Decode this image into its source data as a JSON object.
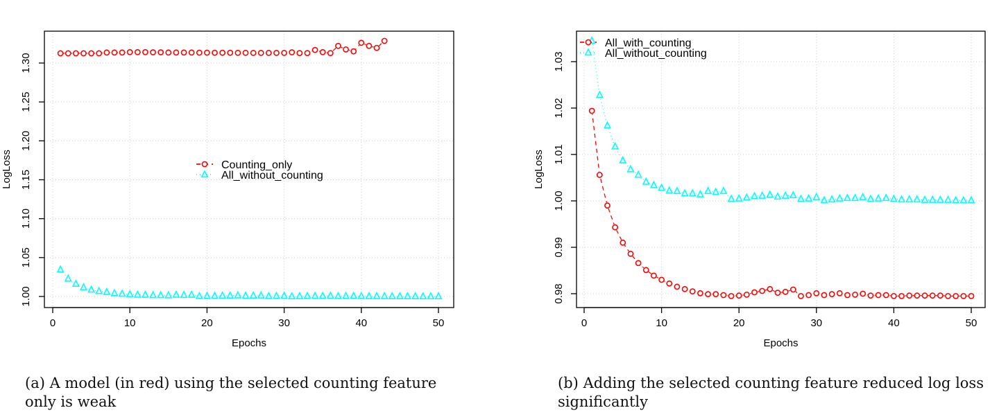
{
  "chart_data": [
    {
      "type": "scatter",
      "panel": "a",
      "title": "",
      "xlabel": "Epochs",
      "ylabel": "LogLoss",
      "xlim": [
        0,
        50
      ],
      "ylim": [
        0.99,
        1.335
      ],
      "xticks": [
        0,
        10,
        20,
        30,
        40,
        50
      ],
      "xtick_labels": [
        "0",
        "10",
        "20",
        "30",
        "40",
        "50"
      ],
      "yticks": [
        1.0,
        1.05,
        1.1,
        1.15,
        1.2,
        1.25,
        1.3
      ],
      "ytick_labels": [
        "1.00",
        "1.05",
        "1.10",
        "1.15",
        "1.20",
        "1.25",
        "1.30"
      ],
      "grid": true,
      "legend_position": "center",
      "series": [
        {
          "name": "Counting_only",
          "color": "#ff0000",
          "marker": "circle",
          "line": "dashed",
          "x": [
            1,
            2,
            3,
            4,
            5,
            6,
            7,
            8,
            9,
            10,
            11,
            12,
            13,
            14,
            15,
            16,
            17,
            18,
            19,
            20,
            21,
            22,
            23,
            24,
            25,
            26,
            27,
            28,
            29,
            30,
            31,
            32,
            33,
            34,
            35,
            36,
            37,
            38,
            39,
            40,
            41,
            42,
            43
          ],
          "values": [
            1.3125,
            1.3125,
            1.3125,
            1.3125,
            1.3125,
            1.3125,
            1.3135,
            1.3135,
            1.3135,
            1.314,
            1.314,
            1.314,
            1.3138,
            1.3138,
            1.3135,
            1.3135,
            1.3135,
            1.3135,
            1.3133,
            1.3133,
            1.3132,
            1.3132,
            1.3132,
            1.3131,
            1.3131,
            1.313,
            1.313,
            1.313,
            1.313,
            1.313,
            1.3138,
            1.3128,
            1.3128,
            1.3168,
            1.314,
            1.3128,
            1.322,
            1.3175,
            1.315,
            1.326,
            1.322,
            1.3195,
            1.3285
          ]
        },
        {
          "name": "All_without_counting",
          "color": "#00ffff",
          "marker": "triangle",
          "line": "dotted",
          "x": [
            1,
            2,
            3,
            4,
            5,
            6,
            7,
            8,
            9,
            10,
            11,
            12,
            13,
            14,
            15,
            16,
            17,
            18,
            19,
            20,
            21,
            22,
            23,
            24,
            25,
            26,
            27,
            28,
            29,
            30,
            31,
            32,
            33,
            34,
            35,
            36,
            37,
            38,
            39,
            40,
            41,
            42,
            43,
            44,
            45,
            46,
            47,
            48,
            49,
            50
          ],
          "values": [
            1.0345,
            1.0228,
            1.0162,
            1.0117,
            1.0087,
            1.0068,
            1.0056,
            1.0041,
            1.0034,
            1.0028,
            1.0022,
            1.0021,
            1.0016,
            1.0016,
            1.0014,
            1.0021,
            1.0019,
            1.0021,
            1.0004,
            1.0005,
            1.0007,
            1.001,
            1.0011,
            1.0013,
            1.0009,
            1.0011,
            1.0012,
            1.0004,
            1.0005,
            1.0008,
            1.0001,
            1.0003,
            1.0005,
            1.0006,
            1.0006,
            1.0008,
            1.0004,
            1.0005,
            1.0006,
            1.0004,
            1.0003,
            1.0003,
            1.0003,
            1.0002,
            1.0002,
            1.0002,
            1.0002,
            1.0001,
            1.0001,
            1.0001
          ]
        }
      ],
      "caption": "(a) A model (in red) using the selected counting feature only is weak"
    },
    {
      "type": "scatter",
      "panel": "b",
      "title": "",
      "xlabel": "Epochs",
      "ylabel": "LogLoss",
      "xlim": [
        0,
        50
      ],
      "ylim": [
        0.9776,
        1.0368
      ],
      "xticks": [
        0,
        10,
        20,
        30,
        40,
        50
      ],
      "xtick_labels": [
        "0",
        "10",
        "20",
        "30",
        "40",
        "50"
      ],
      "yticks": [
        0.98,
        0.99,
        1.0,
        1.01,
        1.02,
        1.03
      ],
      "ytick_labels": [
        "0.98",
        "0.99",
        "1.00",
        "1.01",
        "1.02",
        "1.03"
      ],
      "grid": true,
      "legend_position": "top-left",
      "series": [
        {
          "name": "All_with_counting",
          "color": "#ff0000",
          "marker": "circle",
          "line": "dashed",
          "x": [
            1,
            2,
            3,
            4,
            5,
            6,
            7,
            8,
            9,
            10,
            11,
            12,
            13,
            14,
            15,
            16,
            17,
            18,
            19,
            20,
            21,
            22,
            23,
            24,
            25,
            26,
            27,
            28,
            29,
            30,
            31,
            32,
            33,
            34,
            35,
            36,
            37,
            38,
            39,
            40,
            41,
            42,
            43,
            44,
            45,
            46,
            47,
            48,
            49,
            50
          ],
          "values": [
            1.0194,
            1.0056,
            0.999,
            0.9943,
            0.991,
            0.9886,
            0.9866,
            0.9851,
            0.9839,
            0.983,
            0.9822,
            0.9815,
            0.981,
            0.9805,
            0.9801,
            0.9799,
            0.9799,
            0.9797,
            0.9795,
            0.9796,
            0.9798,
            0.9803,
            0.9806,
            0.981,
            0.9802,
            0.9804,
            0.9809,
            0.9795,
            0.9797,
            0.9801,
            0.9797,
            0.9799,
            0.9801,
            0.9797,
            0.9798,
            0.98,
            0.9796,
            0.9797,
            0.9797,
            0.9795,
            0.9795,
            0.9796,
            0.9796,
            0.9796,
            0.9796,
            0.9796,
            0.9795,
            0.9795,
            0.9795,
            0.9795
          ]
        },
        {
          "name": "All_without_counting",
          "color": "#00ffff",
          "marker": "triangle",
          "line": "dotted",
          "x": [
            1,
            2,
            3,
            4,
            5,
            6,
            7,
            8,
            9,
            10,
            11,
            12,
            13,
            14,
            15,
            16,
            17,
            18,
            19,
            20,
            21,
            22,
            23,
            24,
            25,
            26,
            27,
            28,
            29,
            30,
            31,
            32,
            33,
            34,
            35,
            36,
            37,
            38,
            39,
            40,
            41,
            42,
            43,
            44,
            45,
            46,
            47,
            48,
            49,
            50
          ],
          "values": [
            1.0345,
            1.0228,
            1.0162,
            1.0117,
            1.0087,
            1.0068,
            1.0056,
            1.0041,
            1.0034,
            1.0028,
            1.0022,
            1.0021,
            1.0016,
            1.0016,
            1.0014,
            1.0021,
            1.0019,
            1.0021,
            1.0004,
            1.0005,
            1.0007,
            1.001,
            1.0011,
            1.0013,
            1.0009,
            1.0011,
            1.0012,
            1.0004,
            1.0005,
            1.0008,
            1.0001,
            1.0003,
            1.0005,
            1.0006,
            1.0006,
            1.0008,
            1.0004,
            1.0005,
            1.0006,
            1.0004,
            1.0003,
            1.0003,
            1.0003,
            1.0002,
            1.0002,
            1.0002,
            1.0002,
            1.0001,
            1.0001,
            1.0001
          ]
        }
      ],
      "caption": "(b) Adding the selected counting feature reduced log loss significantly"
    }
  ],
  "captions": {
    "a": "(a) A model (in red) using the selected counting feature only is weak",
    "b": "(b) Adding the selected counting feature reduced log loss significantly"
  }
}
